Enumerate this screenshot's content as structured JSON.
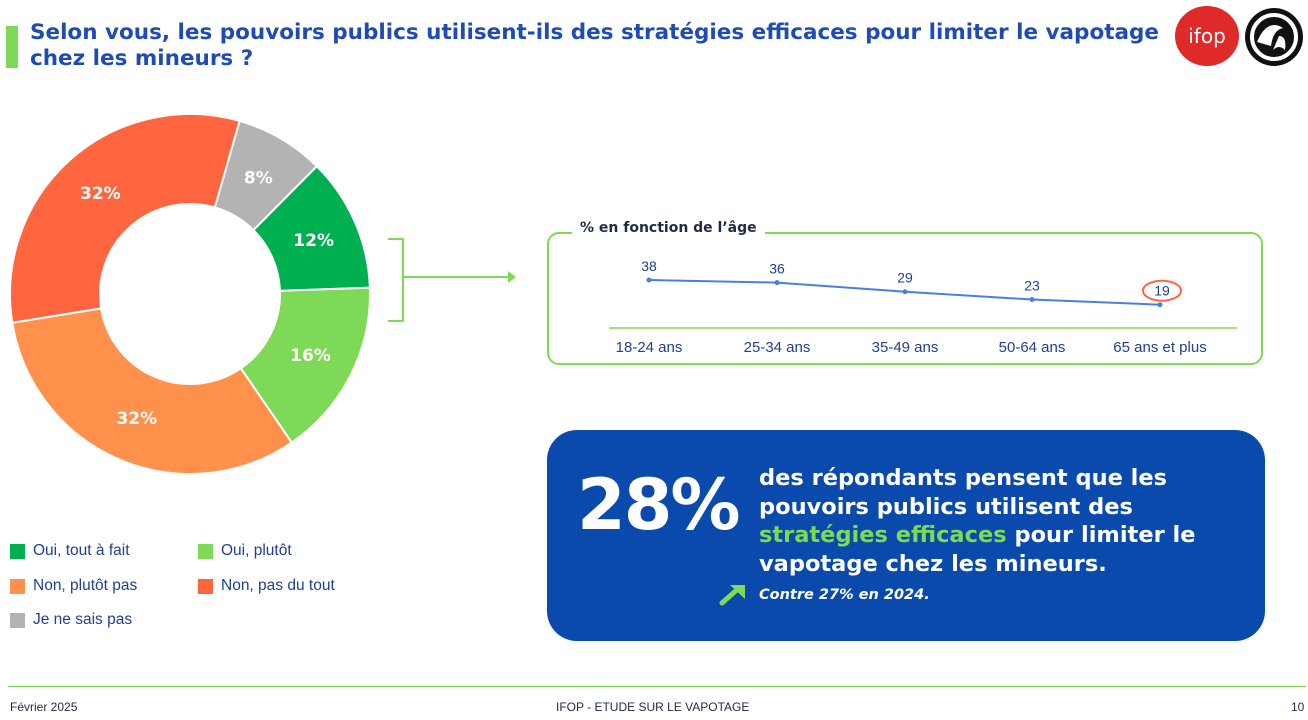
{
  "header": {
    "title": "Selon vous, les pouvoirs publics utilisent-ils des stratégies efficaces pour limiter le vapotage chez les mineurs ?",
    "logo_text": "ifop"
  },
  "chart_data": [
    {
      "type": "pie",
      "subtype": "donut",
      "categories": [
        "Oui, tout à fait",
        "Oui, plutôt",
        "Non, plutôt pas",
        "Non, pas du tout",
        "Je ne sais pas"
      ],
      "values": [
        12,
        16,
        32,
        32,
        8
      ],
      "labels": [
        "12%",
        "16%",
        "32%",
        "32%",
        "8%"
      ],
      "colors": [
        "#00b050",
        "#7ed957",
        "#ff914d",
        "#ff6640",
        "#b3b3b3"
      ],
      "legend_position": "bottom-left",
      "legend_order": [
        [
          "Oui, tout à fait",
          "Oui, plutôt"
        ],
        [
          "Non, plutôt pas",
          "Non, pas du tout"
        ],
        [
          "Je ne sais pas"
        ]
      ]
    },
    {
      "type": "line",
      "title": "% en fonction de l’âge",
      "categories": [
        "18-24 ans",
        "25-34 ans",
        "35-49 ans",
        "50-64 ans",
        "65 ans et plus"
      ],
      "values": [
        38,
        36,
        29,
        23,
        19
      ],
      "labels": [
        "38",
        "36",
        "29",
        "23",
        "19"
      ],
      "highlighted_index": 4,
      "line_color": "#4a7fe0",
      "highlight_color": "#ff6640",
      "axis_color": "#7ed957"
    }
  ],
  "callout": {
    "big_number": "28%",
    "text_before": "des répondants pensent que les pouvoirs publics utilisent des",
    "highlight": "stratégies efficaces",
    "text_after": "pour limiter le vapotage chez les mineurs.",
    "arrow_icon": "trend-up-arrow-icon",
    "comparison": "Contre 27% en 2024."
  },
  "footer": {
    "date": "Février 2025",
    "study": "IFOP - ETUDE SUR LE VAPOTAGE",
    "page": "10"
  },
  "colors": {
    "title_blue": "#1f4bb5",
    "accent_green": "#7ed957",
    "callout_blue": "#0b4aad"
  }
}
